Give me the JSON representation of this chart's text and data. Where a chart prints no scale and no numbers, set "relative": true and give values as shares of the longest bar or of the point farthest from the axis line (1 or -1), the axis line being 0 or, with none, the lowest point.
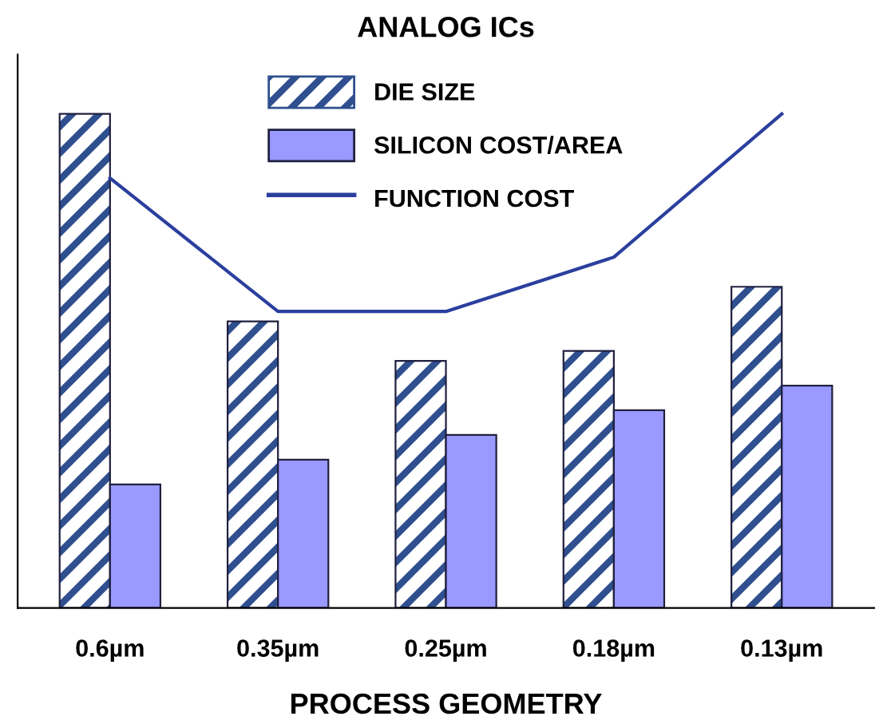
{
  "chart_data": {
    "type": "bar",
    "title": "ANALOG ICs",
    "xlabel": "PROCESS GEOMETRY",
    "relative": true,
    "categories": [
      "0.6µm",
      "0.35µm",
      "0.25µm",
      "0.18µm",
      "0.13µm"
    ],
    "series": [
      {
        "name": "DIE SIZE",
        "color": "#2f4f8f",
        "values": [
          1.0,
          0.58,
          0.5,
          0.52,
          0.65
        ]
      },
      {
        "name": "SILICON COST/AREA",
        "color": "#9999ff",
        "values": [
          0.25,
          0.3,
          0.35,
          0.4,
          0.45
        ]
      },
      {
        "name": "FUNCTION COST",
        "type": "line",
        "color": "#2b3f9e",
        "values": [
          0.87,
          0.6,
          0.6,
          0.71,
          1.0
        ]
      }
    ],
    "legend": "top",
    "grid": false
  }
}
